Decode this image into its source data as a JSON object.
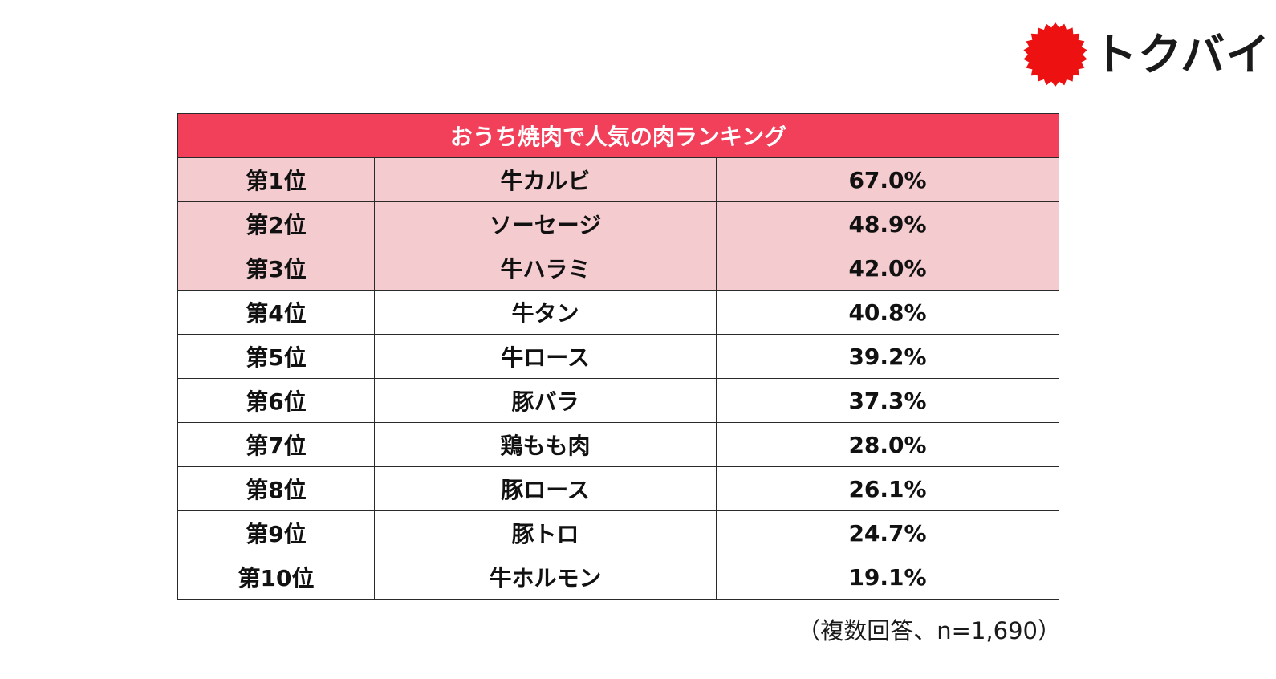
{
  "colors": {
    "header_bg": "#f2405a",
    "top3_row_bg": "#f4cbcf",
    "logo_red": "#ee1111"
  },
  "logo": {
    "text": "トクバイ",
    "icon": "red-sunburst-icon"
  },
  "chart_data": {
    "type": "table",
    "title": "おうち焼肉で人気の肉ランキング",
    "columns": [
      "rank",
      "meat",
      "percentage"
    ],
    "highlighted_top_rows": 3,
    "rows": [
      {
        "rank": "第1位",
        "meat": "牛カルビ",
        "pct": "67.0%",
        "value": 67.0
      },
      {
        "rank": "第2位",
        "meat": "ソーセージ",
        "pct": "48.9%",
        "value": 48.9
      },
      {
        "rank": "第3位",
        "meat": "牛ハラミ",
        "pct": "42.0%",
        "value": 42.0
      },
      {
        "rank": "第4位",
        "meat": "牛タン",
        "pct": "40.8%",
        "value": 40.8
      },
      {
        "rank": "第5位",
        "meat": "牛ロース",
        "pct": "39.2%",
        "value": 39.2
      },
      {
        "rank": "第6位",
        "meat": "豚バラ",
        "pct": "37.3%",
        "value": 37.3
      },
      {
        "rank": "第7位",
        "meat": "鶏もも肉",
        "pct": "28.0%",
        "value": 28.0
      },
      {
        "rank": "第8位",
        "meat": "豚ロース",
        "pct": "26.1%",
        "value": 26.1
      },
      {
        "rank": "第9位",
        "meat": "豚トロ",
        "pct": "24.7%",
        "value": 24.7
      },
      {
        "rank": "第10位",
        "meat": "牛ホルモン",
        "pct": "19.1%",
        "value": 19.1
      }
    ],
    "note": "（複数回答、n=1,690）"
  }
}
